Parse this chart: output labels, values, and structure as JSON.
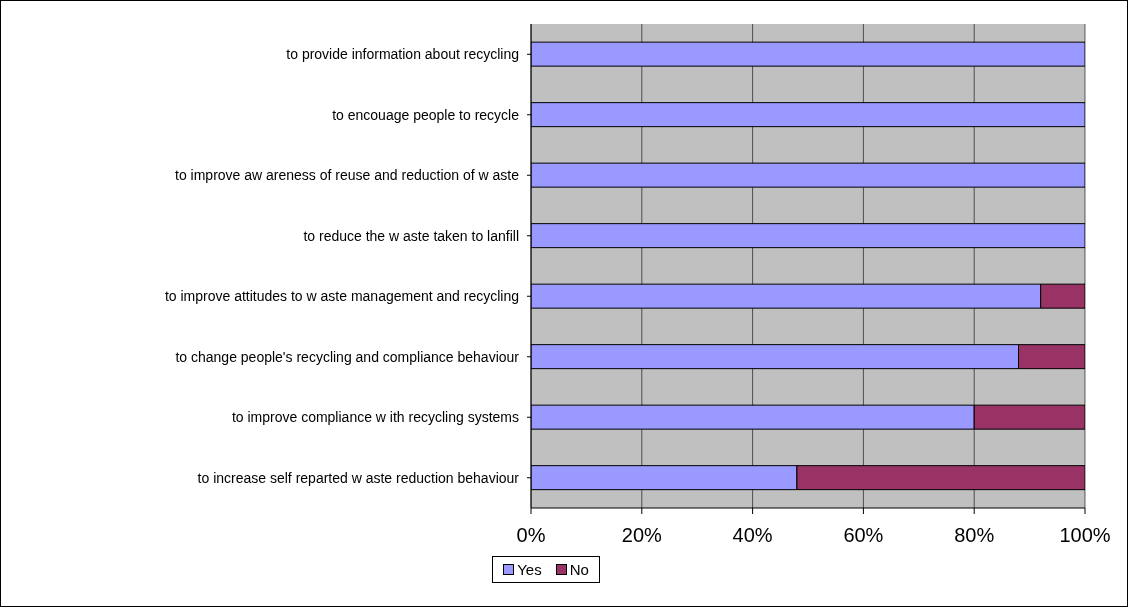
{
  "chart_data": {
    "type": "bar",
    "orientation": "horizontal",
    "stacked": true,
    "categories": [
      "to provide information about recycling",
      "to encouage people to recycle",
      "to improve aw areness of reuse and reduction of w aste",
      "to reduce the w aste taken to lanfill",
      "to improve attitudes to w aste management and recycling",
      "to change people's recycling and compliance behaviour",
      "to improve compliance w ith recycling systems",
      "to increase self reparted w aste reduction behaviour"
    ],
    "series": [
      {
        "name": "Yes",
        "color": "#9999ff",
        "values": [
          100,
          100,
          100,
          100,
          92,
          88,
          80,
          48
        ]
      },
      {
        "name": "No",
        "color": "#993366",
        "values": [
          0,
          0,
          0,
          0,
          8,
          12,
          20,
          52
        ]
      }
    ],
    "xlim": [
      0,
      100
    ],
    "xticks": [
      {
        "value": 0,
        "label": "0%"
      },
      {
        "value": 20,
        "label": "20%"
      },
      {
        "value": 40,
        "label": "40%"
      },
      {
        "value": 60,
        "label": "60%"
      },
      {
        "value": 80,
        "label": "80%"
      },
      {
        "value": 100,
        "label": "100%"
      }
    ],
    "grid": "x",
    "legend": "bottom"
  }
}
